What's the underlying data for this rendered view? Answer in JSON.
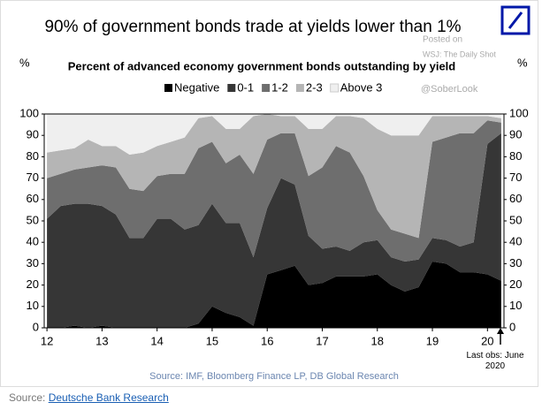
{
  "chart_data": {
    "type": "stacked_area",
    "title": "90% of government bonds trade at yields lower than 1%",
    "subtitle": "Percent of advanced economy government bonds outstanding by yield",
    "y_axis_label": "%",
    "watermark": [
      "Posted on",
      "WSJ: The Daily Shot",
      "@SoberLook"
    ],
    "annotation": "Last obs: June 2020",
    "source": "Source:  IMF, Bloomberg Finance LP, DB Global Research",
    "x": [
      2012,
      2012.25,
      2012.5,
      2012.75,
      2013,
      2013.25,
      2013.5,
      2013.75,
      2014,
      2014.25,
      2014.5,
      2014.75,
      2015,
      2015.25,
      2015.5,
      2015.75,
      2016,
      2016.25,
      2016.5,
      2016.75,
      2017,
      2017.25,
      2017.5,
      2017.75,
      2018,
      2018.25,
      2018.5,
      2018.75,
      2019,
      2019.25,
      2019.5,
      2019.75,
      2020,
      2020.25
    ],
    "series": [
      {
        "name": "Negative",
        "color": "#000000",
        "values": [
          0,
          0,
          1,
          0,
          1,
          0,
          0,
          0,
          0,
          0,
          0,
          2,
          10,
          7,
          5,
          1,
          25,
          27,
          29,
          20,
          21,
          24,
          24,
          24,
          25,
          20,
          17,
          19,
          31,
          30,
          26,
          26,
          25,
          22
        ]
      },
      {
        "name": "0-1",
        "color": "#363636",
        "values": [
          51,
          57,
          57,
          58,
          56,
          53,
          42,
          42,
          51,
          51,
          46,
          46,
          48,
          42,
          44,
          32,
          31,
          43,
          38,
          23,
          16,
          14,
          12,
          16,
          16,
          13,
          14,
          13,
          11,
          11,
          12,
          14,
          61,
          69
        ]
      },
      {
        "name": "1-2",
        "color": "#6e6e6e",
        "values": [
          19,
          15,
          16,
          17,
          19,
          22,
          23,
          22,
          20,
          21,
          26,
          36,
          29,
          28,
          32,
          39,
          32,
          21,
          24,
          28,
          38,
          47,
          46,
          31,
          14,
          13,
          13,
          10,
          45,
          48,
          53,
          51,
          11,
          5
        ]
      },
      {
        "name": "2-3",
        "color": "#b5b5b5",
        "values": [
          12,
          11,
          10,
          13,
          9,
          10,
          16,
          18,
          14,
          15,
          17,
          14,
          12,
          16,
          12,
          27,
          12,
          8,
          8,
          22,
          18,
          14,
          17,
          27,
          38,
          44,
          46,
          48,
          12,
          10,
          8,
          8,
          2,
          2
        ]
      },
      {
        "name": "Above 3",
        "color": "#efefef",
        "values": [
          18,
          17,
          16,
          12,
          15,
          15,
          19,
          18,
          15,
          13,
          11,
          2,
          1,
          7,
          7,
          1,
          0,
          1,
          1,
          7,
          7,
          1,
          1,
          2,
          7,
          10,
          10,
          10,
          1,
          1,
          1,
          1,
          1,
          2
        ]
      }
    ],
    "xlim": [
      2011.95,
      2020.3
    ],
    "xticks": [
      {
        "value": 2012,
        "label": "12"
      },
      {
        "value": 2013,
        "label": "13"
      },
      {
        "value": 2014,
        "label": "14"
      },
      {
        "value": 2015,
        "label": "15"
      },
      {
        "value": 2016,
        "label": "16"
      },
      {
        "value": 2017,
        "label": "17"
      },
      {
        "value": 2018,
        "label": "18"
      },
      {
        "value": 2019,
        "label": "19"
      },
      {
        "value": 2020,
        "label": "20"
      }
    ],
    "ylim": [
      0,
      100
    ],
    "yticks": [
      0,
      10,
      20,
      30,
      40,
      50,
      60,
      70,
      80,
      90,
      100
    ],
    "grid": false
  },
  "page_source": {
    "prefix": "Source:",
    "link": "Deutsche Bank Research"
  }
}
